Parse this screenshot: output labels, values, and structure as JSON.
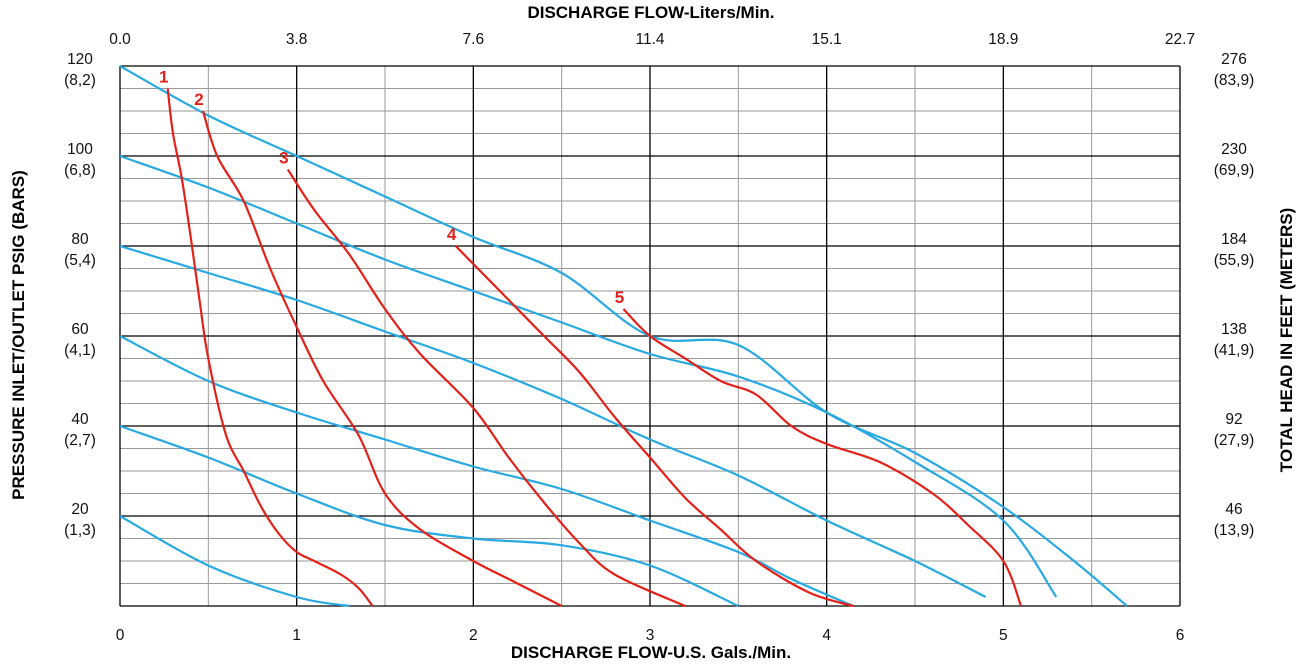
{
  "chart_data": {
    "type": "line",
    "title": "",
    "xlabel": "DISCHARGE FLOW-U.S. Gals./Min.",
    "x2label": "DISCHARGE FLOW-Liters/Min.",
    "ylabel": "PRESSURE INLET/OUTLET PSIG (BARS)",
    "y2label": "TOTAL HEAD IN FEET (METERS)",
    "xlim": [
      0,
      6
    ],
    "ylim": [
      0,
      120
    ],
    "grid": true,
    "x_ticks": [
      "0",
      "1",
      "2",
      "3",
      "4",
      "5",
      "6"
    ],
    "x2_ticks": [
      "0.0",
      "3.8",
      "7.6",
      "11.4",
      "15.1",
      "18.9",
      "22.7"
    ],
    "y_ticks": [
      {
        "value": 120,
        "psi": "120",
        "bar": "(8,2)",
        "feet": "276",
        "meters": "(83,9)"
      },
      {
        "value": 100,
        "psi": "100",
        "bar": "(6,8)",
        "feet": "230",
        "meters": "(69,9)"
      },
      {
        "value": 80,
        "psi": "80",
        "bar": "(5,4)",
        "feet": "184",
        "meters": "(55,9)"
      },
      {
        "value": 60,
        "psi": "60",
        "bar": "(4,1)",
        "feet": "138",
        "meters": "(41,9)"
      },
      {
        "value": 40,
        "psi": "40",
        "bar": "(2,7)",
        "feet": "92",
        "meters": "(27,9)"
      },
      {
        "value": 20,
        "psi": "20",
        "bar": "(1,3)",
        "feet": "46",
        "meters": "(13,9)"
      }
    ],
    "colors": {
      "air_pressure_curves": "#27a9e1",
      "air_consumption_curves": "#e32119",
      "grid": "#000000",
      "minor_grid": "#9a9a9a"
    },
    "air_pressure_curves": [
      {
        "points": [
          [
            0,
            20
          ],
          [
            0.5,
            9
          ],
          [
            1.0,
            2
          ],
          [
            1.3,
            0
          ]
        ]
      },
      {
        "points": [
          [
            0,
            40
          ],
          [
            0.5,
            33
          ],
          [
            1.0,
            25
          ],
          [
            1.5,
            18
          ],
          [
            2.0,
            15
          ],
          [
            2.5,
            13.5
          ],
          [
            3.0,
            9
          ],
          [
            3.5,
            0
          ]
        ]
      },
      {
        "points": [
          [
            0,
            60
          ],
          [
            0.5,
            50
          ],
          [
            1.0,
            43
          ],
          [
            1.5,
            37
          ],
          [
            2.0,
            31
          ],
          [
            2.5,
            26
          ],
          [
            3.0,
            19
          ],
          [
            3.5,
            12
          ],
          [
            3.8,
            6
          ],
          [
            4.15,
            0
          ]
        ]
      },
      {
        "points": [
          [
            0,
            80
          ],
          [
            0.5,
            74
          ],
          [
            1.0,
            68
          ],
          [
            1.5,
            61
          ],
          [
            2.0,
            54
          ],
          [
            2.5,
            46
          ],
          [
            3.0,
            37
          ],
          [
            3.5,
            29
          ],
          [
            4.0,
            19
          ],
          [
            4.5,
            10
          ],
          [
            4.9,
            2
          ]
        ]
      },
      {
        "points": [
          [
            0,
            100
          ],
          [
            0.5,
            93
          ],
          [
            1.0,
            85
          ],
          [
            1.5,
            77
          ],
          [
            2.0,
            70
          ],
          [
            2.5,
            63
          ],
          [
            3.0,
            56
          ],
          [
            3.5,
            51
          ],
          [
            4.0,
            43
          ],
          [
            4.5,
            32
          ],
          [
            5.0,
            19
          ],
          [
            5.3,
            2
          ]
        ]
      },
      {
        "points": [
          [
            0,
            120
          ],
          [
            0.5,
            109
          ],
          [
            1.0,
            100
          ],
          [
            1.5,
            91
          ],
          [
            2.0,
            82
          ],
          [
            2.5,
            74
          ],
          [
            3.0,
            60
          ],
          [
            3.5,
            58
          ],
          [
            4.0,
            43
          ],
          [
            4.5,
            34
          ],
          [
            5.0,
            22
          ],
          [
            5.4,
            10
          ],
          [
            5.7,
            0
          ]
        ]
      }
    ],
    "air_consumption_curves": [
      {
        "label": "1",
        "points": [
          [
            0.27,
            115
          ],
          [
            0.3,
            105
          ],
          [
            0.35,
            95
          ],
          [
            0.4,
            82
          ],
          [
            0.45,
            68
          ],
          [
            0.5,
            55
          ],
          [
            0.6,
            38
          ],
          [
            0.7,
            30
          ],
          [
            0.8,
            22
          ],
          [
            0.9,
            16
          ],
          [
            1.0,
            12
          ],
          [
            1.1,
            10
          ],
          [
            1.25,
            7
          ],
          [
            1.35,
            4
          ],
          [
            1.43,
            0
          ]
        ]
      },
      {
        "label": "2",
        "points": [
          [
            0.47,
            110
          ],
          [
            0.55,
            100
          ],
          [
            0.7,
            90
          ],
          [
            0.85,
            75
          ],
          [
            1.0,
            62
          ],
          [
            1.15,
            50
          ],
          [
            1.35,
            38
          ],
          [
            1.5,
            25
          ],
          [
            1.7,
            17
          ],
          [
            2.0,
            10
          ],
          [
            2.2,
            6
          ],
          [
            2.5,
            0
          ]
        ]
      },
      {
        "label": "3",
        "points": [
          [
            0.95,
            97
          ],
          [
            1.1,
            88
          ],
          [
            1.3,
            78
          ],
          [
            1.5,
            66
          ],
          [
            1.7,
            56
          ],
          [
            2.0,
            44
          ],
          [
            2.2,
            33
          ],
          [
            2.4,
            23
          ],
          [
            2.6,
            14
          ],
          [
            2.8,
            7
          ],
          [
            3.2,
            0
          ]
        ]
      },
      {
        "label": "4",
        "points": [
          [
            1.9,
            80
          ],
          [
            2.05,
            74
          ],
          [
            2.2,
            68
          ],
          [
            2.4,
            60
          ],
          [
            2.6,
            52
          ],
          [
            2.8,
            42
          ],
          [
            3.0,
            33
          ],
          [
            3.2,
            24
          ],
          [
            3.4,
            17
          ],
          [
            3.6,
            10
          ],
          [
            3.9,
            3
          ],
          [
            4.15,
            0
          ]
        ]
      },
      {
        "label": "5",
        "points": [
          [
            2.85,
            66
          ],
          [
            3.0,
            60
          ],
          [
            3.2,
            55
          ],
          [
            3.4,
            50
          ],
          [
            3.6,
            47
          ],
          [
            3.8,
            40
          ],
          [
            4.0,
            36
          ],
          [
            4.3,
            32
          ],
          [
            4.6,
            25
          ],
          [
            4.8,
            18
          ],
          [
            5.0,
            10
          ],
          [
            5.1,
            0
          ]
        ]
      }
    ]
  }
}
